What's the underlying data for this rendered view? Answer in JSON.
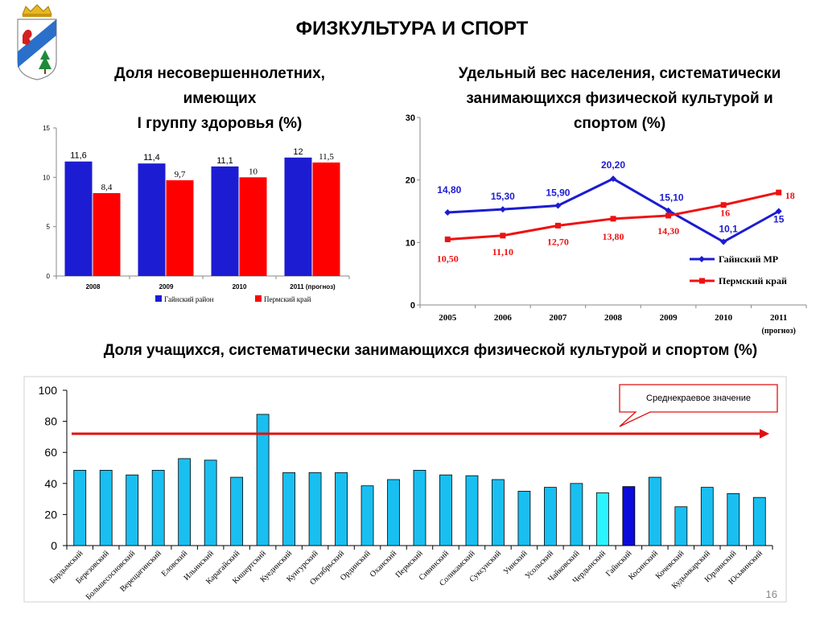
{
  "page": {
    "title": "ФИЗКУЛЬТУРА И СПОРТ",
    "page_number": "16",
    "emblem_icon": "coat-of-arms-icon"
  },
  "chart_data": [
    {
      "type": "bar",
      "title_lines": [
        "Доля несовершеннолетних,",
        "имеющих",
        "I группу здоровья (%)"
      ],
      "categories": [
        "2008",
        "2009",
        "2010",
        "2011 (прогноз)"
      ],
      "series": [
        {
          "name": "Гайнский район",
          "values": [
            11.6,
            11.4,
            11.1,
            12
          ],
          "labels": [
            "11,6",
            "11,4",
            "11,1",
            "12"
          ],
          "color": "#1c1cd2"
        },
        {
          "name": "Пермский край",
          "values": [
            8.4,
            9.7,
            10,
            11.5
          ],
          "labels": [
            "8,4",
            "9,7",
            "10",
            "11,5"
          ],
          "color": "#ff0000"
        }
      ],
      "ylim": [
        0,
        15
      ],
      "yticks": [
        "0",
        "5",
        "10",
        "15"
      ],
      "legend": "bottom"
    },
    {
      "type": "line",
      "title_lines": [
        "Удельный вес населения, систематически",
        "занимающихся физической культурой и",
        "спортом (%)"
      ],
      "categories": [
        "2005",
        "2006",
        "2007",
        "2008",
        "2009",
        "2010",
        "2011"
      ],
      "category_note": "(прогноз)",
      "series": [
        {
          "name": "Гайнский МР",
          "values": [
            14.8,
            15.3,
            15.9,
            20.2,
            15.1,
            10.1,
            15
          ],
          "labels": [
            "14,80",
            "15,30",
            "15,90",
            "20,20",
            "15,10",
            "10,1",
            "15"
          ],
          "color": "#1c1cd2"
        },
        {
          "name": "Пермский край",
          "values": [
            10.5,
            11.1,
            12.7,
            13.8,
            14.3,
            16,
            18
          ],
          "labels": [
            "10,50",
            "11,10",
            "12,70",
            "13,80",
            "14,30",
            "16",
            "18"
          ],
          "color": "#ee1111"
        }
      ],
      "ylim": [
        0,
        30
      ],
      "yticks": [
        "0",
        "10",
        "20",
        "30"
      ],
      "legend": "right"
    },
    {
      "type": "bar",
      "title": "Доля учащихся, систематически занимающихся физической культурой и спортом (%)",
      "categories": [
        "Бардымский",
        "Березовский",
        "Большесосновский",
        "Верещагинский",
        "Еловский",
        "Ильинский",
        "Карагайский",
        "Кишертский",
        "Куединский",
        "Кунгурский",
        "Октябрьский",
        "Ординский",
        "Оханский",
        "Пермский",
        "Сивинский",
        "Соликамский",
        "Суксунский",
        "Уинский",
        "Усольский",
        "Чайковский",
        "Чердынский",
        "Гайнский",
        "Косинский",
        "Кочевский",
        "Кудымкарский",
        "Юрлинский",
        "Юсьвинский"
      ],
      "values": [
        48.5,
        48.5,
        45.5,
        48.5,
        56,
        55,
        44,
        84.5,
        47,
        47,
        47,
        38.5,
        42.5,
        48.5,
        45.5,
        45,
        42.5,
        35,
        37.5,
        40,
        34,
        38,
        44,
        25,
        37.5,
        33.5,
        31
      ],
      "bar_colors": [
        "#19bff0",
        "#19bff0",
        "#19bff0",
        "#19bff0",
        "#19bff0",
        "#19bff0",
        "#19bff0",
        "#19bff0",
        "#19bff0",
        "#19bff0",
        "#19bff0",
        "#19bff0",
        "#19bff0",
        "#19bff0",
        "#19bff0",
        "#19bff0",
        "#19bff0",
        "#19bff0",
        "#19bff0",
        "#19bff0",
        "#2bf4ff",
        "#0b0bdc",
        "#19bff0",
        "#19bff0",
        "#19bff0",
        "#19bff0",
        "#19bff0"
      ],
      "ylim": [
        0,
        100
      ],
      "yticks": [
        "0",
        "20",
        "40",
        "60",
        "80",
        "100"
      ],
      "reference_line": {
        "value": 72,
        "label": "Среднекраевое значение",
        "color": "#e01010"
      }
    }
  ]
}
